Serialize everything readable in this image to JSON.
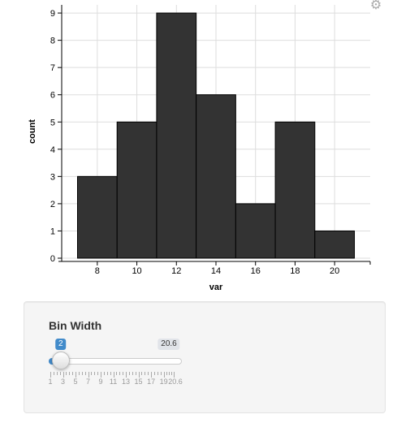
{
  "icons": {
    "settings": "gear-icon"
  },
  "chart_data": {
    "type": "bar",
    "xlabel": "var",
    "ylabel": "count",
    "bin_width": 2,
    "bins": [
      {
        "start": 7,
        "end": 9,
        "count": 3
      },
      {
        "start": 9,
        "end": 11,
        "count": 5
      },
      {
        "start": 11,
        "end": 13,
        "count": 9
      },
      {
        "start": 13,
        "end": 15,
        "count": 6
      },
      {
        "start": 15,
        "end": 17,
        "count": 2
      },
      {
        "start": 17,
        "end": 19,
        "count": 5
      },
      {
        "start": 19,
        "end": 21,
        "count": 1
      }
    ],
    "x_ticks": [
      8,
      10,
      12,
      14,
      16,
      18,
      20
    ],
    "y_ticks": [
      0,
      1,
      2,
      3,
      4,
      5,
      6,
      7,
      8,
      9
    ],
    "xlim": [
      6.2,
      21.8
    ],
    "ylim": [
      0,
      9.3
    ],
    "grid": true,
    "bar_color": "#333333",
    "grid_color": "#dddddd"
  },
  "slider": {
    "label": "Bin Width",
    "value": 2,
    "value_text": "2",
    "min": 1,
    "max": 20.6,
    "max_text": "20.6",
    "tick_labels": [
      "1",
      "3",
      "5",
      "7",
      "9",
      "11",
      "13",
      "15",
      "17",
      "19",
      "20.6"
    ],
    "accent_color": "#428bca"
  }
}
